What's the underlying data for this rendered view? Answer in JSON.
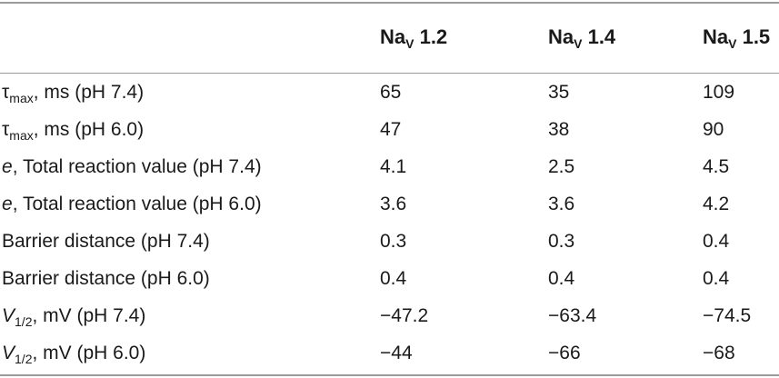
{
  "header": {
    "columns": [
      {
        "base": "Na",
        "sub": "V",
        "num": " 1.2"
      },
      {
        "base": "Na",
        "sub": "V",
        "num": " 1.4"
      },
      {
        "base": "Na",
        "sub": "V",
        "num": " 1.5"
      }
    ]
  },
  "rows": [
    {
      "label_pre": "τ",
      "label_sub": "max",
      "label_post": ", ms (pH 7.4)",
      "label_italic": "",
      "values": [
        "65",
        "35",
        "109"
      ]
    },
    {
      "label_pre": "τ",
      "label_sub": "max",
      "label_post": ", ms (pH 6.0)",
      "label_italic": "",
      "values": [
        "47",
        "38",
        "90"
      ]
    },
    {
      "label_pre": "",
      "label_sub": "",
      "label_post": ", Total reaction value (pH 7.4)",
      "label_italic": "e",
      "values": [
        "4.1",
        "2.5",
        "4.5"
      ]
    },
    {
      "label_pre": "",
      "label_sub": "",
      "label_post": ", Total reaction value (pH 6.0)",
      "label_italic": "e",
      "values": [
        "3.6",
        "3.6",
        "4.2"
      ]
    },
    {
      "label_pre": "Barrier distance (pH 7.4)",
      "label_sub": "",
      "label_post": "",
      "label_italic": "",
      "values": [
        "0.3",
        "0.3",
        "0.4"
      ]
    },
    {
      "label_pre": "Barrier distance (pH 6.0)",
      "label_sub": "",
      "label_post": "",
      "label_italic": "",
      "values": [
        "0.4",
        "0.4",
        "0.4"
      ]
    },
    {
      "label_pre": "",
      "label_sub": "1/2",
      "label_post": ", mV (pH 7.4)",
      "label_italic": "V",
      "values": [
        "−47.2",
        "−63.4",
        "−74.5"
      ]
    },
    {
      "label_pre": "",
      "label_sub": "1/2",
      "label_post": ", mV (pH 6.0)",
      "label_italic": "V",
      "values": [
        "−44",
        "−66",
        "−68"
      ]
    }
  ]
}
